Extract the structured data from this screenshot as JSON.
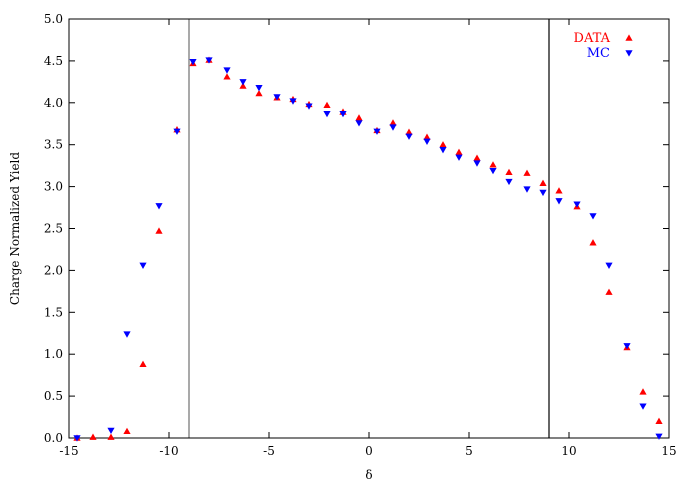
{
  "chart_data": {
    "type": "scatter",
    "xlabel": "δ",
    "ylabel": "Charge Normalized Yield",
    "xlim": [
      -15,
      15
    ],
    "ylim": [
      0,
      5
    ],
    "x_ticks": [
      -15,
      -10,
      -5,
      0,
      5,
      10,
      15
    ],
    "x_tick_labels": [
      "-15",
      "-10",
      "-5",
      "0",
      "5",
      "10",
      "15"
    ],
    "y_ticks": [
      0,
      0.5,
      1,
      1.5,
      2,
      2.5,
      3,
      3.5,
      4,
      4.5,
      5
    ],
    "y_tick_labels": [
      "0.0",
      "0.5",
      "1.0",
      "1.5",
      "2.0",
      "2.5",
      "3.0",
      "3.5",
      "4.0",
      "4.5",
      "5.0"
    ],
    "grid": false,
    "legend_position": "top-right",
    "vertical_lines": [
      {
        "x": -9,
        "color": "#707070"
      },
      {
        "x": 9,
        "color": "#000000"
      }
    ],
    "series": [
      {
        "name": "DATA",
        "color": "#ff0000",
        "marker": "triangle-up",
        "x": [
          -14.6,
          -13.8,
          -12.9,
          -12.1,
          -11.3,
          -10.5,
          -9.6,
          -8.8,
          -8.0,
          -7.1,
          -6.3,
          -5.5,
          -4.6,
          -3.8,
          -3.0,
          -2.1,
          -1.3,
          -0.5,
          0.4,
          1.2,
          2.0,
          2.9,
          3.7,
          4.5,
          5.4,
          6.2,
          7.0,
          7.9,
          8.7,
          9.5,
          10.4,
          11.2,
          12.0,
          12.9,
          13.7,
          14.5
        ],
        "y": [
          0.0,
          0.01,
          0.01,
          0.08,
          0.88,
          2.47,
          3.68,
          4.47,
          4.51,
          4.31,
          4.2,
          4.11,
          4.06,
          4.04,
          3.98,
          3.97,
          3.89,
          3.82,
          3.67,
          3.76,
          3.65,
          3.59,
          3.5,
          3.41,
          3.34,
          3.26,
          3.17,
          3.16,
          3.04,
          2.95,
          2.76,
          2.33,
          1.74,
          1.08,
          0.55,
          0.2
        ]
      },
      {
        "name": "MC",
        "color": "#0000ff",
        "marker": "triangle-down",
        "x": [
          -14.6,
          -12.9,
          -12.1,
          -11.3,
          -10.5,
          -9.6,
          -8.8,
          -8.0,
          -7.1,
          -6.3,
          -5.5,
          -4.6,
          -3.8,
          -3.0,
          -2.1,
          -1.3,
          -0.5,
          0.4,
          1.2,
          2.0,
          2.9,
          3.7,
          4.5,
          5.4,
          6.2,
          7.0,
          7.9,
          8.7,
          9.5,
          10.4,
          11.2,
          12.0,
          12.9,
          13.7,
          14.5
        ],
        "y": [
          0.0,
          0.09,
          1.24,
          2.06,
          2.77,
          3.66,
          4.49,
          4.51,
          4.39,
          4.25,
          4.18,
          4.07,
          4.02,
          3.96,
          3.87,
          3.87,
          3.76,
          3.66,
          3.71,
          3.6,
          3.54,
          3.44,
          3.35,
          3.28,
          3.19,
          3.06,
          2.97,
          2.93,
          2.83,
          2.79,
          2.65,
          2.06,
          1.1,
          0.38,
          0.02
        ]
      }
    ]
  }
}
